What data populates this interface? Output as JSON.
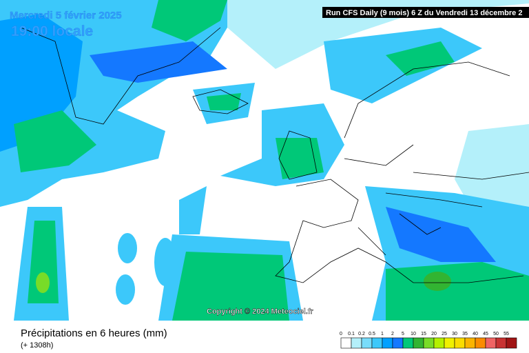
{
  "header": {
    "date": "Mercredi 5 février 2025",
    "time": "19:00 locale",
    "run": "Run CFS Daily (9 mois) 6 Z du Vendredi 13 décembre 2"
  },
  "copyright": "Copyright © 2024 Meteociel.fr",
  "footer": {
    "title": "Précipitations en 6 heures (mm)",
    "lead": "(+ 1308h)"
  },
  "legend": {
    "labels": [
      0,
      0.1,
      0.2,
      0.5,
      1,
      2,
      5,
      10,
      15,
      20,
      25,
      30,
      35,
      40,
      45,
      50,
      55
    ],
    "colors": [
      "#ffffff",
      "#b4f0fa",
      "#78dcfa",
      "#3cc8fa",
      "#00a0ff",
      "#1478ff",
      "#00c878",
      "#32b432",
      "#78dc28",
      "#b4f000",
      "#f0f000",
      "#fadc00",
      "#fab400",
      "#fa8c00",
      "#f06464",
      "#c83232",
      "#a01414"
    ]
  }
}
